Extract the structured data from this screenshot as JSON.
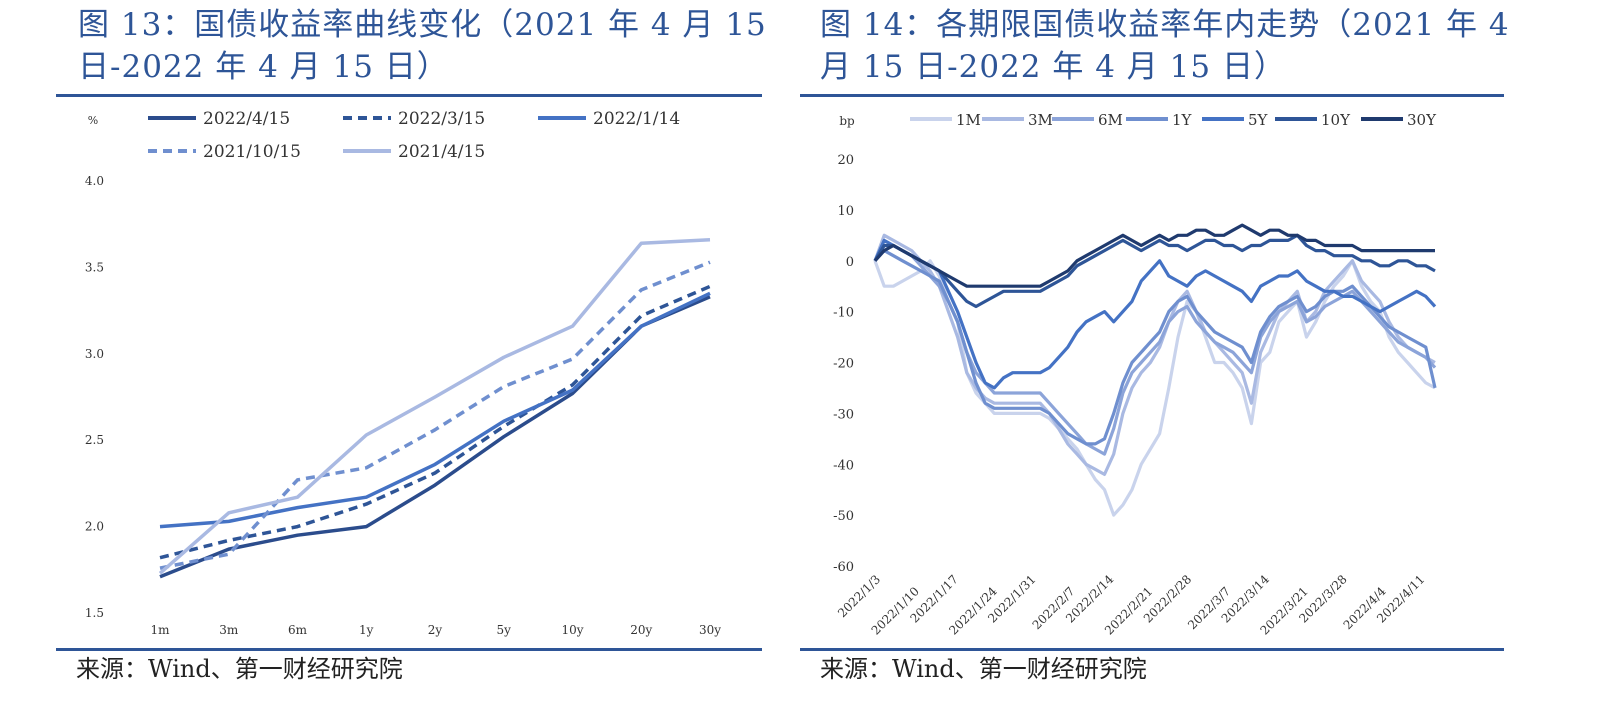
{
  "left": {
    "title": "图 13：国债收益率曲线变化（2021 年 4 月 15 日-2022 年 4 月 15 日）",
    "source": "来源：Wind、第一财经研究院"
  },
  "right": {
    "title": "图 14：各期限国债收益率年内走势（2021 年 4 月 15 日-2022 年 4 月 15 日）",
    "source": "来源：Wind、第一财经研究院"
  },
  "colors": {
    "title": "#2e5597",
    "rule": "#2e5597"
  },
  "chart_data": [
    {
      "type": "line",
      "unit_label": "%",
      "categories": [
        "1m",
        "3m",
        "6m",
        "1y",
        "2y",
        "5y",
        "10y",
        "20y",
        "30y"
      ],
      "ylim": [
        1.5,
        4.0
      ],
      "yticks": [
        "1.5",
        "2.0",
        "2.5",
        "3.0",
        "3.5",
        "4.0"
      ],
      "grid": false,
      "legend_position": "top",
      "series": [
        {
          "name": "2022/4/15",
          "values": [
            1.71,
            1.87,
            1.95,
            2.0,
            2.24,
            2.52,
            2.77,
            3.16,
            3.33
          ],
          "color": "#2b4c8c",
          "style": "solid"
        },
        {
          "name": "2022/3/15",
          "values": [
            1.82,
            1.92,
            2.0,
            2.13,
            2.31,
            2.58,
            2.82,
            3.22,
            3.39
          ],
          "color": "#2e5597",
          "style": "dash"
        },
        {
          "name": "2022/1/14",
          "values": [
            2.0,
            2.03,
            2.11,
            2.17,
            2.36,
            2.61,
            2.79,
            3.16,
            3.35
          ],
          "color": "#4472c4",
          "style": "solid"
        },
        {
          "name": "2021/10/15",
          "values": [
            1.76,
            1.84,
            2.27,
            2.34,
            2.56,
            2.81,
            2.97,
            3.37,
            3.53
          ],
          "color": "#6f8fcf",
          "style": "dash"
        },
        {
          "name": "2021/4/15",
          "values": [
            1.73,
            2.08,
            2.17,
            2.53,
            2.75,
            2.98,
            3.16,
            3.64,
            3.66
          ],
          "color": "#a9b9e2",
          "style": "solid"
        }
      ]
    },
    {
      "type": "line",
      "unit_label": "bp",
      "x_tick_labels": [
        "2022/1/3",
        "2022/1/10",
        "2022/1/17",
        "2022/1/24",
        "2022/1/31",
        "2022/2/7",
        "2022/2/14",
        "2022/2/21",
        "2022/2/28",
        "2022/3/7",
        "2022/3/14",
        "2022/3/21",
        "2022/3/28",
        "2022/4/4",
        "2022/4/11"
      ],
      "ylim": [
        -60,
        20
      ],
      "yticks": [
        "-60",
        "-50",
        "-40",
        "-30",
        "-20",
        "-10",
        "0",
        "10",
        "20"
      ],
      "grid": false,
      "legend_position": "top",
      "series": [
        {
          "name": "1M",
          "color": "#c9d3ec",
          "values": [
            0,
            -5,
            -5,
            -4,
            -3,
            -2,
            0,
            -3,
            -8,
            -12,
            -22,
            -26,
            -28,
            -30,
            -30,
            -30,
            -30,
            -30,
            -30,
            -31,
            -33,
            -35,
            -37,
            -40,
            -43,
            -45,
            -50,
            -48,
            -45,
            -40,
            -37,
            -34,
            -25,
            -15,
            -8,
            -10,
            -15,
            -20,
            -20,
            -22,
            -25,
            -32,
            -20,
            -18,
            -12,
            -10,
            -8,
            -15,
            -12,
            -8,
            -5,
            -3,
            0,
            -5,
            -8,
            -10,
            -15,
            -18,
            -20,
            -22,
            -24,
            -25
          ]
        },
        {
          "name": "3M",
          "color": "#a9b9e2",
          "values": [
            0,
            5,
            4,
            3,
            2,
            0,
            -2,
            -5,
            -10,
            -15,
            -22,
            -25,
            -27,
            -28,
            -28,
            -28,
            -28,
            -28,
            -28,
            -30,
            -33,
            -36,
            -38,
            -40,
            -41,
            -42,
            -38,
            -30,
            -25,
            -22,
            -20,
            -17,
            -12,
            -8,
            -6,
            -10,
            -14,
            -16,
            -18,
            -20,
            -22,
            -28,
            -18,
            -14,
            -10,
            -8,
            -6,
            -12,
            -10,
            -6,
            -4,
            -2,
            0,
            -4,
            -6,
            -8,
            -12,
            -15,
            -17,
            -18,
            -19,
            -20
          ]
        },
        {
          "name": "6M",
          "color": "#8ca4d9",
          "values": [
            0,
            3,
            3,
            2,
            1,
            -1,
            -3,
            -5,
            -8,
            -12,
            -18,
            -22,
            -24,
            -26,
            -26,
            -26,
            -26,
            -26,
            -26,
            -28,
            -30,
            -32,
            -34,
            -36,
            -37,
            -38,
            -33,
            -26,
            -22,
            -20,
            -18,
            -16,
            -12,
            -10,
            -9,
            -12,
            -14,
            -16,
            -17,
            -18,
            -20,
            -22,
            -15,
            -12,
            -10,
            -9,
            -8,
            -12,
            -11,
            -9,
            -8,
            -7,
            -6,
            -8,
            -10,
            -12,
            -14,
            -16,
            -17,
            -18,
            -19,
            -21
          ]
        },
        {
          "name": "1Y",
          "color": "#6f8fcf",
          "values": [
            0,
            2,
            1,
            0,
            -1,
            -2,
            -3,
            -4,
            -8,
            -12,
            -18,
            -24,
            -28,
            -29,
            -29,
            -29,
            -29,
            -29,
            -29,
            -30,
            -32,
            -34,
            -35,
            -36,
            -36,
            -35,
            -30,
            -24,
            -20,
            -18,
            -16,
            -14,
            -10,
            -8,
            -7,
            -10,
            -12,
            -14,
            -15,
            -16,
            -17,
            -20,
            -14,
            -11,
            -9,
            -8,
            -7,
            -10,
            -9,
            -7,
            -6,
            -6,
            -5,
            -7,
            -9,
            -11,
            -13,
            -14,
            -15,
            -16,
            -17,
            -25
          ]
        },
        {
          "name": "5Y",
          "color": "#4472c4",
          "values": [
            0,
            4,
            3,
            2,
            1,
            0,
            -1,
            -2,
            -6,
            -10,
            -15,
            -20,
            -24,
            -25,
            -23,
            -22,
            -22,
            -22,
            -22,
            -21,
            -19,
            -17,
            -14,
            -12,
            -11,
            -10,
            -12,
            -10,
            -8,
            -4,
            -2,
            0,
            -3,
            -4,
            -5,
            -3,
            -2,
            -3,
            -4,
            -5,
            -6,
            -8,
            -5,
            -4,
            -3,
            -3,
            -2,
            -4,
            -5,
            -6,
            -6,
            -7,
            -7,
            -8,
            -9,
            -10,
            -9,
            -8,
            -7,
            -6,
            -7,
            -9
          ]
        },
        {
          "name": "10Y",
          "color": "#2e5597",
          "values": [
            0,
            3,
            3,
            2,
            1,
            0,
            -1,
            -2,
            -4,
            -6,
            -8,
            -9,
            -8,
            -7,
            -6,
            -6,
            -6,
            -6,
            -6,
            -5,
            -4,
            -3,
            -1,
            0,
            1,
            2,
            3,
            4,
            3,
            2,
            3,
            4,
            3,
            3,
            2,
            3,
            4,
            4,
            3,
            3,
            2,
            3,
            3,
            4,
            4,
            4,
            5,
            3,
            2,
            2,
            1,
            1,
            1,
            0,
            0,
            -1,
            -1,
            0,
            0,
            -1,
            -1,
            -2
          ]
        },
        {
          "name": "30Y",
          "color": "#1f3a6e",
          "values": [
            0,
            2,
            3,
            2,
            1,
            0,
            -1,
            -2,
            -3,
            -4,
            -5,
            -5,
            -5,
            -5,
            -5,
            -5,
            -5,
            -5,
            -5,
            -4,
            -3,
            -2,
            0,
            1,
            2,
            3,
            4,
            5,
            4,
            3,
            4,
            5,
            4,
            5,
            5,
            6,
            6,
            5,
            5,
            6,
            7,
            6,
            5,
            6,
            6,
            5,
            5,
            4,
            4,
            3,
            3,
            3,
            3,
            2,
            2,
            2,
            2,
            2,
            2,
            2,
            2,
            2
          ]
        }
      ]
    }
  ]
}
